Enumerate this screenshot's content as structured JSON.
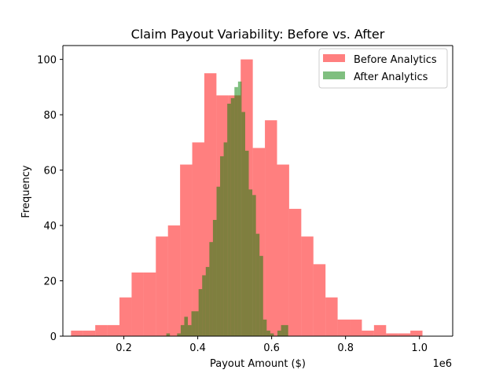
{
  "chart_data": {
    "type": "bar",
    "subtype": "overlaid-histogram",
    "title": "Claim Payout Variability: Before vs. After",
    "xlabel": "Payout Amount ($)",
    "ylabel": "Frequency",
    "x_offset_label": "1e6",
    "x_scale": 1000000,
    "xlim": [
      0.035,
      1.09
    ],
    "ylim": [
      0,
      105
    ],
    "xticks": [
      "0.2",
      "0.4",
      "0.6",
      "0.8",
      "1.0"
    ],
    "yticks": [
      "0",
      "20",
      "40",
      "60",
      "80",
      "100"
    ],
    "legend_position": "top-right",
    "grid": false,
    "series": [
      {
        "name": "Before Analytics",
        "color": "#ff0000",
        "alpha": 0.5,
        "bin_edges": [
          0.057,
          0.0898,
          0.1226,
          0.1554,
          0.1882,
          0.221,
          0.2538,
          0.2866,
          0.3194,
          0.3522,
          0.385,
          0.4178,
          0.4506,
          0.4834,
          0.5162,
          0.549,
          0.5818,
          0.6146,
          0.6474,
          0.6802,
          0.713,
          0.7458,
          0.7786,
          0.8114,
          0.8442,
          0.877,
          0.9098,
          0.9426,
          0.9754,
          1.0082,
          1.041
        ],
        "counts": [
          2,
          2,
          4,
          4,
          14,
          23,
          23,
          36,
          40,
          62,
          70,
          95,
          87,
          87,
          100,
          68,
          78,
          62,
          46,
          36,
          26,
          14,
          6,
          6,
          2,
          4,
          1,
          1,
          2,
          0
        ]
      },
      {
        "name": "After Analytics",
        "color": "#008000",
        "alpha": 0.5,
        "bin_edges": [
          0.315,
          0.3247,
          0.3344,
          0.3441,
          0.3538,
          0.3635,
          0.3732,
          0.3829,
          0.3926,
          0.4023,
          0.412,
          0.4217,
          0.4314,
          0.4411,
          0.4508,
          0.4605,
          0.4702,
          0.4799,
          0.4896,
          0.4993,
          0.509,
          0.5187,
          0.5284,
          0.5381,
          0.5478,
          0.5575,
          0.5672,
          0.5769,
          0.5866,
          0.5963,
          0.606,
          0.6157,
          0.6254,
          0.6351,
          0.6448
        ],
        "counts": [
          1,
          0,
          0,
          1,
          4,
          7,
          4,
          9,
          9,
          17,
          22,
          25,
          34,
          42,
          54,
          65,
          70,
          84,
          86,
          90,
          92,
          81,
          67,
          53,
          51,
          37,
          29,
          6,
          2,
          1,
          0,
          2,
          4,
          4
        ]
      }
    ]
  }
}
